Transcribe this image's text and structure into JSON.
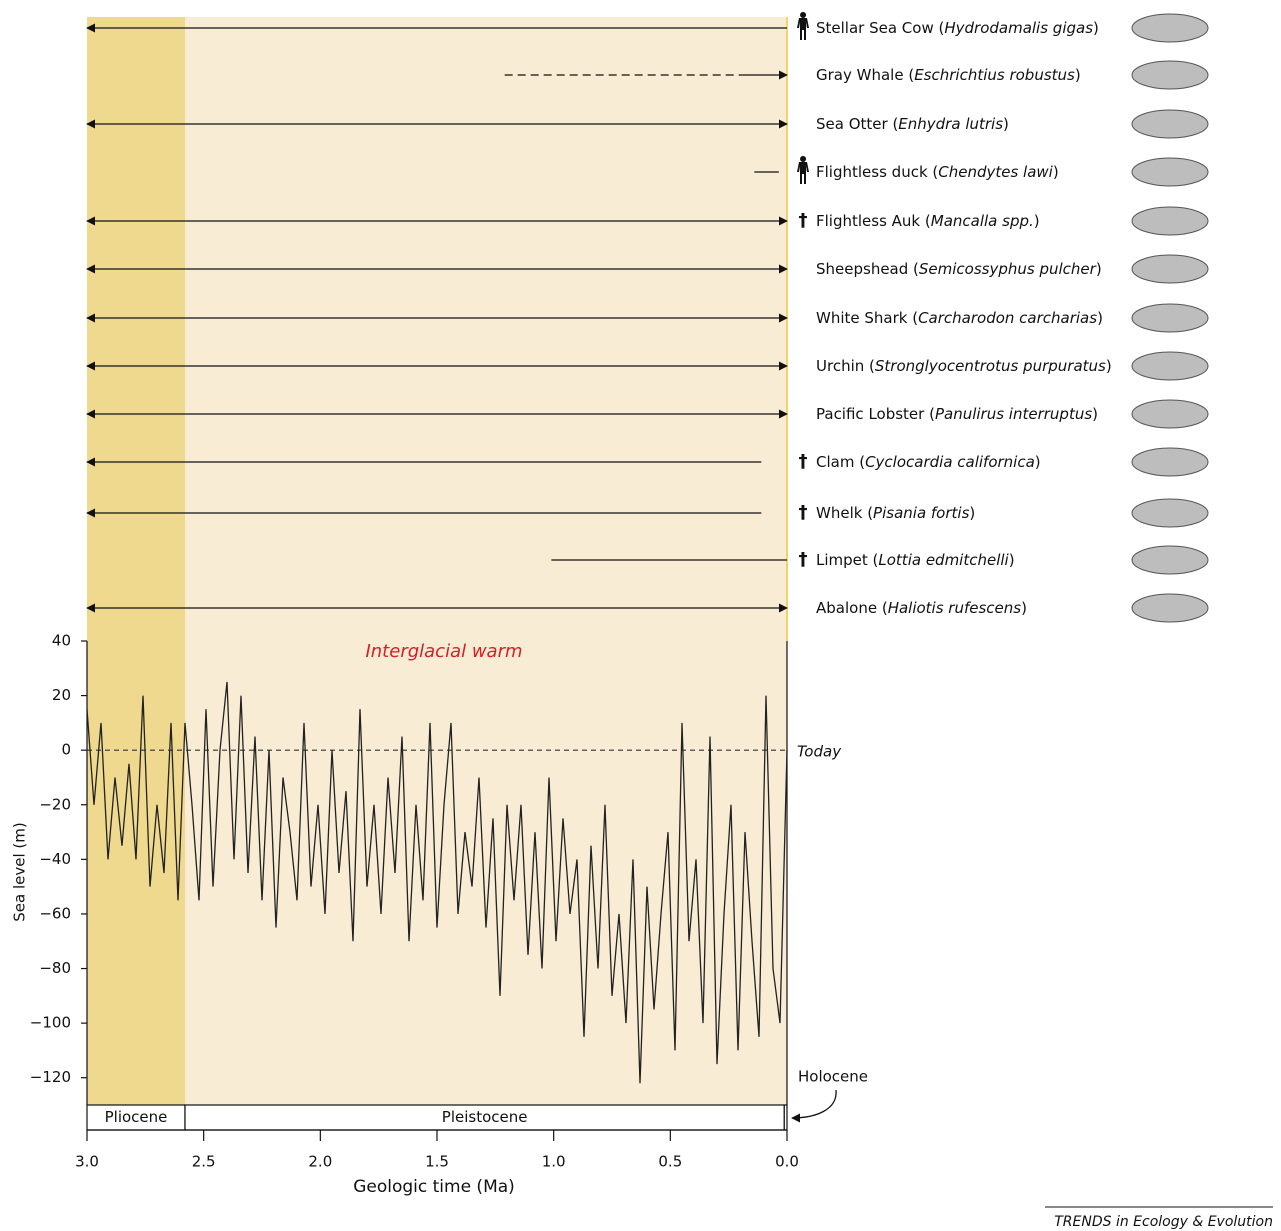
{
  "chart_data": {
    "type": "line",
    "xlabel": "Geologic time (Ma)",
    "ylabel": "Sea level (m)",
    "xlim": [
      3.0,
      0.0
    ],
    "ylim": [
      -130,
      40
    ],
    "xticks": [
      {
        "value": 3.0,
        "label": "3.0"
      },
      {
        "value": 2.5,
        "label": "2.5"
      },
      {
        "value": 2.0,
        "label": "2.0"
      },
      {
        "value": 1.5,
        "label": "1.5"
      },
      {
        "value": 1.0,
        "label": "1.0"
      },
      {
        "value": 0.5,
        "label": "0.5"
      },
      {
        "value": 0.0,
        "label": "0.0"
      }
    ],
    "yticks": [
      40,
      20,
      0,
      {
        "value": -20,
        "label": "−20"
      },
      {
        "value": -40,
        "label": "−40"
      },
      {
        "value": -60,
        "label": "−60"
      },
      {
        "value": -80,
        "label": "−80"
      },
      {
        "value": -100,
        "label": "−100"
      },
      {
        "value": -120,
        "label": "−120"
      }
    ],
    "annotation": "Interglacial warm",
    "reference": {
      "value": 0,
      "label": "Today"
    },
    "epochs": [
      {
        "name": "Pliocene",
        "start": 3.0,
        "end": 2.58,
        "color": "#eed98e"
      },
      {
        "name": "Pleistocene",
        "start": 2.58,
        "end": 0.0117,
        "color": "#f8ecd4"
      }
    ],
    "holocene_label": "Holocene",
    "line_color": "#222222",
    "x": [
      3.0,
      2.97,
      2.94,
      2.91,
      2.88,
      2.85,
      2.82,
      2.79,
      2.76,
      2.73,
      2.7,
      2.67,
      2.64,
      2.61,
      2.58,
      2.55,
      2.52,
      2.49,
      2.46,
      2.43,
      2.4,
      2.37,
      2.34,
      2.31,
      2.28,
      2.25,
      2.22,
      2.19,
      2.16,
      2.13,
      2.1,
      2.07,
      2.04,
      2.01,
      1.98,
      1.95,
      1.92,
      1.89,
      1.86,
      1.83,
      1.8,
      1.77,
      1.74,
      1.71,
      1.68,
      1.65,
      1.62,
      1.59,
      1.56,
      1.53,
      1.5,
      1.47,
      1.44,
      1.41,
      1.38,
      1.35,
      1.32,
      1.29,
      1.26,
      1.23,
      1.2,
      1.17,
      1.14,
      1.11,
      1.08,
      1.05,
      1.02,
      0.99,
      0.96,
      0.93,
      0.9,
      0.87,
      0.84,
      0.81,
      0.78,
      0.75,
      0.72,
      0.69,
      0.66,
      0.63,
      0.6,
      0.57,
      0.54,
      0.51,
      0.48,
      0.45,
      0.42,
      0.39,
      0.36,
      0.33,
      0.3,
      0.27,
      0.24,
      0.21,
      0.18,
      0.15,
      0.12,
      0.09,
      0.06,
      0.03,
      0.0
    ],
    "values": [
      15,
      -20,
      10,
      -40,
      -10,
      -35,
      -5,
      -40,
      20,
      -50,
      -20,
      -45,
      10,
      -55,
      10,
      -20,
      -55,
      15,
      -50,
      0,
      25,
      -40,
      20,
      -45,
      5,
      -55,
      0,
      -65,
      -10,
      -30,
      -55,
      10,
      -50,
      -20,
      -60,
      0,
      -45,
      -15,
      -70,
      15,
      -50,
      -20,
      -60,
      -10,
      -45,
      5,
      -70,
      -20,
      -55,
      10,
      -65,
      -20,
      10,
      -60,
      -30,
      -50,
      -10,
      -65,
      -25,
      -90,
      -20,
      -55,
      -20,
      -75,
      -30,
      -80,
      -10,
      -70,
      -25,
      -60,
      -40,
      -105,
      -35,
      -80,
      -20,
      -90,
      -60,
      -100,
      -40,
      -122,
      -50,
      -95,
      -60,
      -30,
      -110,
      10,
      -70,
      -40,
      -100,
      5,
      -115,
      -60,
      -20,
      -110,
      -30,
      -70,
      -105,
      20,
      -80,
      -100,
      0
    ],
    "species": [
      {
        "label": "Stellar Sea Cow (Hydrodamalis gigas)",
        "italic": "Hydrodamalis gigas",
        "range": [
          3.0,
          0.0
        ],
        "arrows": "left",
        "extinction": "human"
      },
      {
        "label": "Gray Whale (Eschrichtius robustus)",
        "italic": "Eschrichtius robustus",
        "range": [
          1.21,
          0.0
        ],
        "arrows": "right",
        "dashed": true,
        "solid_from": 0.19
      },
      {
        "label": "Sea Otter (Enhydra lutris)",
        "italic": "Enhydra lutris",
        "range": [
          3.0,
          0.0
        ],
        "arrows": "both"
      },
      {
        "label": "Flightless duck (Chendytes lawi)",
        "italic": "Chendytes lawi",
        "range": [
          0.14,
          0.035
        ],
        "arrows": "none",
        "extinction": "human"
      },
      {
        "label": "Flightless Auk (Mancalla spp.)",
        "italic": "Mancalla spp.",
        "range": [
          3.0,
          0.0
        ],
        "arrows": "both",
        "extinction": "†"
      },
      {
        "label": "Sheepshead (Semicossyphus pulcher)",
        "italic": "Semicossyphus pulcher",
        "range": [
          3.0,
          0.0
        ],
        "arrows": "both"
      },
      {
        "label": "White Shark (Carcharodon carcharias)",
        "italic": "Carcharodon carcharias",
        "range": [
          3.0,
          0.0
        ],
        "arrows": "both"
      },
      {
        "label": "Urchin (Stronglyocentrotus purpuratus)",
        "italic": "Stronglyocentrotus purpuratus",
        "range": [
          3.0,
          0.0
        ],
        "arrows": "both"
      },
      {
        "label": "Pacific Lobster (Panulirus interruptus)",
        "italic": "Panulirus interruptus",
        "range": [
          3.0,
          0.0
        ],
        "arrows": "both"
      },
      {
        "label": "Clam (Cyclocardia californica)",
        "italic": "Cyclocardia californica",
        "range": [
          3.0,
          0.11
        ],
        "arrows": "left",
        "extinction": "†"
      },
      {
        "label": "Whelk (Pisania fortis)",
        "italic": "Pisania fortis",
        "range": [
          3.0,
          0.11
        ],
        "arrows": "left",
        "extinction": "†"
      },
      {
        "label": "Limpet (Lottia edmitchelli)",
        "italic": "Lottia edmitchelli",
        "range": [
          1.01,
          0.0
        ],
        "arrows": "none",
        "extinction": "†"
      },
      {
        "label": "Abalone (Haliotis rufescens)",
        "italic": "Haliotis rufescens",
        "range": [
          3.0,
          0.0
        ],
        "arrows": "both"
      }
    ],
    "source": "TRENDS in Ecology & Evolution"
  }
}
